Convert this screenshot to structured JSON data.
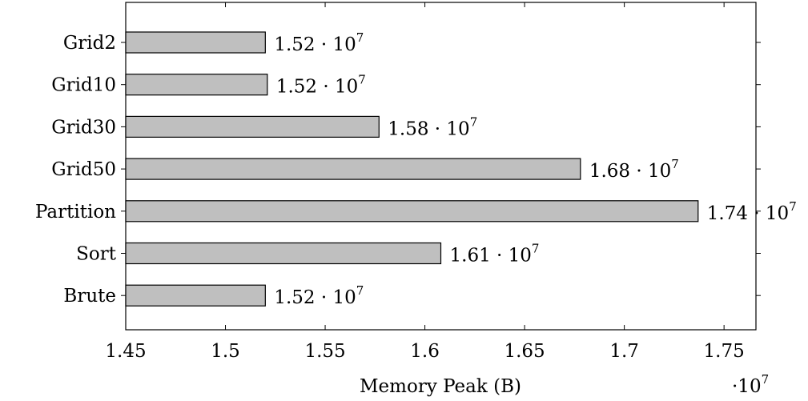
{
  "chart_data": {
    "type": "bar",
    "orientation": "horizontal",
    "categories": [
      "Grid2",
      "Grid10",
      "Grid30",
      "Grid50",
      "Partition",
      "Sort",
      "Brute"
    ],
    "values": [
      15200000,
      15210000,
      15770000,
      16780000,
      17370000,
      16080000,
      15200000
    ],
    "data_labels": [
      {
        "mantissa": "1.52",
        "exp": "7"
      },
      {
        "mantissa": "1.52",
        "exp": "7"
      },
      {
        "mantissa": "1.58",
        "exp": "7"
      },
      {
        "mantissa": "1.68",
        "exp": "7"
      },
      {
        "mantissa": "1.74",
        "exp": "7"
      },
      {
        "mantissa": "1.61",
        "exp": "7"
      },
      {
        "mantissa": "1.52",
        "exp": "7"
      }
    ],
    "xlabel": "Memory Peak (B)",
    "ylabel": "",
    "x_ticks": [
      "1.45",
      "1.5",
      "1.55",
      "1.6",
      "1.65",
      "1.7",
      "1.75"
    ],
    "x_tick_values": [
      14500000,
      15000000,
      15500000,
      16000000,
      16500000,
      17000000,
      17500000
    ],
    "xlim": [
      14500000,
      17660000
    ],
    "axis_multiplier": {
      "base": "·10",
      "exp": "7"
    },
    "bar_color": "#bfbfbf",
    "bar_stroke": "#000000",
    "grid": false,
    "legend": "none"
  }
}
